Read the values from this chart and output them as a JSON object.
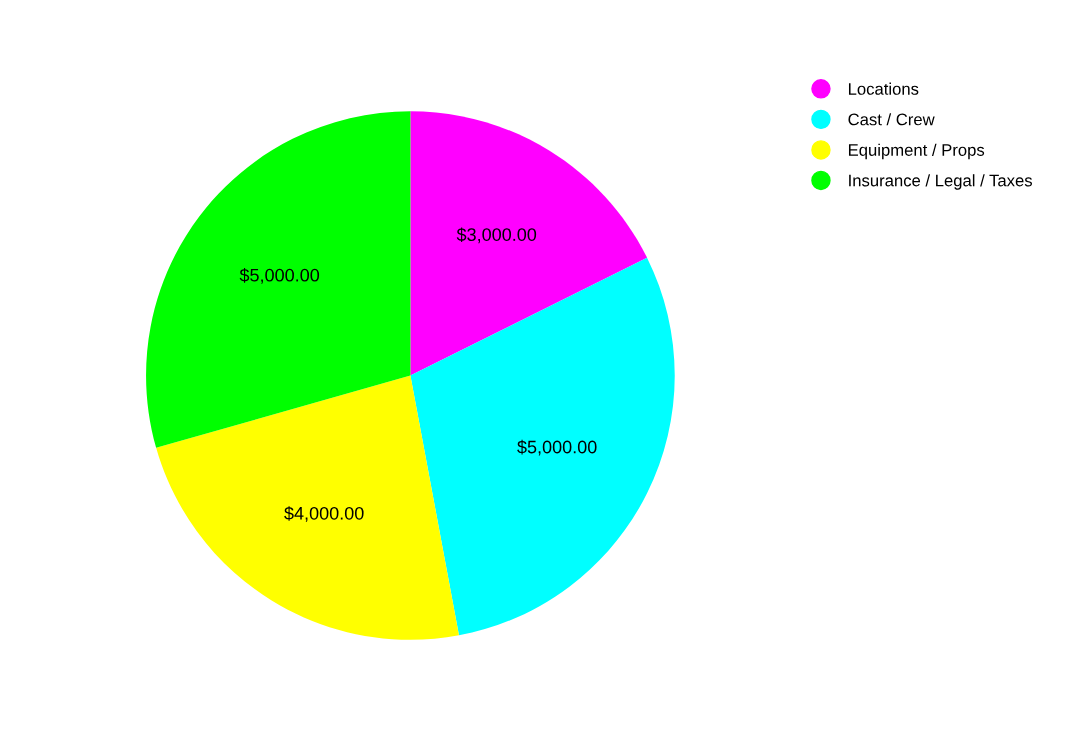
{
  "chart_data": {
    "type": "pie",
    "categories": [
      "Locations",
      "Cast / Crew",
      "Equipment / Props",
      "Insurance / Legal / Taxes"
    ],
    "values": [
      3000,
      5000,
      4000,
      5000
    ],
    "colors": [
      "#ff00ff",
      "#00ffff",
      "#ffff00",
      "#00ff00"
    ],
    "value_labels": [
      "$3,000.00",
      "$5,000.00",
      "$4,000.00",
      "$5,000.00"
    ],
    "legend": "top right"
  }
}
